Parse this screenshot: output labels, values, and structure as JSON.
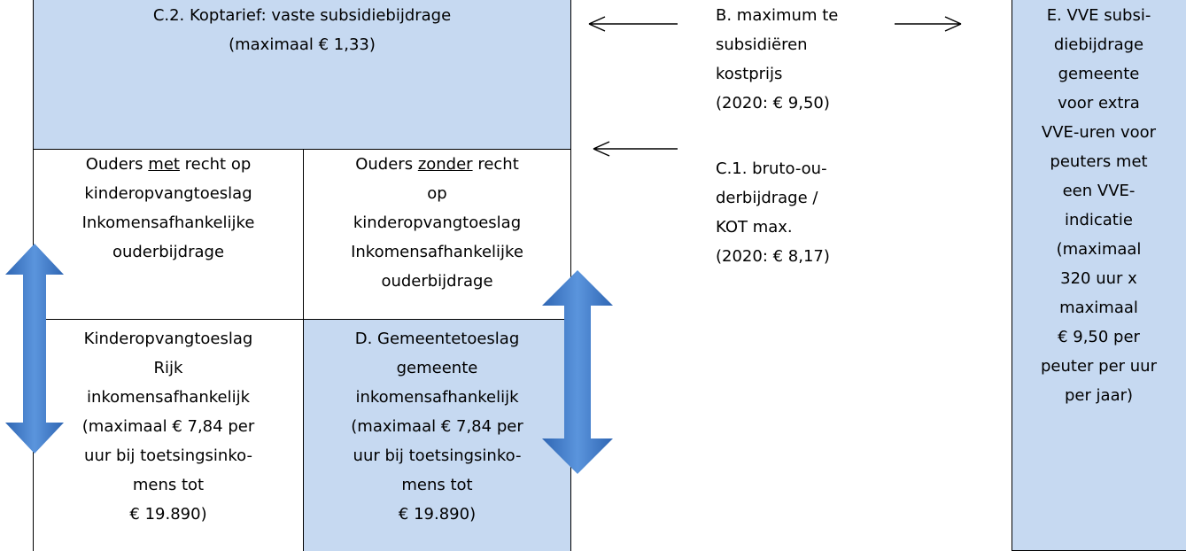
{
  "top_box": {
    "lines": [
      "C.2. Koptarief: vaste subsidiebijdrage",
      "(maximaal € 1,33)"
    ]
  },
  "cells": [
    {
      "lines": [
        {
          "before": "Ouders ",
          "underlined": "met",
          "after": " recht op"
        },
        "kinderopvangtoeslag",
        "Inkomensafhankelijke",
        "ouderbijdrage"
      ]
    },
    {
      "lines": [
        {
          "before": "Ouders ",
          "underlined": "zonder",
          "after": " recht"
        },
        "op",
        "kinderopvangtoeslag",
        "Inkomensafhankelijke",
        "ouderbijdrage"
      ]
    },
    {
      "lines": [
        "Kinderopvangtoeslag",
        "Rijk",
        "inkomensafhankelijk",
        "(maximaal € 7,84 per",
        "uur bij toetsingsinko-",
        "mens tot",
        "€ 19.890)"
      ]
    },
    {
      "lines": [
        "D. Gemeentetoeslag",
        "gemeente",
        "inkomensafhankelijk",
        "(maximaal € 7,84 per",
        "uur bij toetsingsinko-",
        "mens tot",
        "€ 19.890)"
      ]
    }
  ],
  "label_b": {
    "lines": [
      "B. maximum te",
      "subsidiëren",
      "kostprijs",
      "(2020: € 9,50)"
    ]
  },
  "label_c1": {
    "lines": [
      "C.1. bruto-ou-",
      "derbijdrage /",
      "KOT max.",
      "(2020: € 8,17)"
    ]
  },
  "box_e": {
    "lines": [
      "E. VVE subsi-",
      "diebijdrage",
      "gemeente",
      "voor extra",
      "VVE-uren voor",
      "peuters met",
      "een VVE-",
      "indicatie",
      "(maximaal",
      "320 uur x",
      "maximaal",
      "€ 9,50 per",
      "peuter per uur",
      "per jaar)"
    ]
  }
}
